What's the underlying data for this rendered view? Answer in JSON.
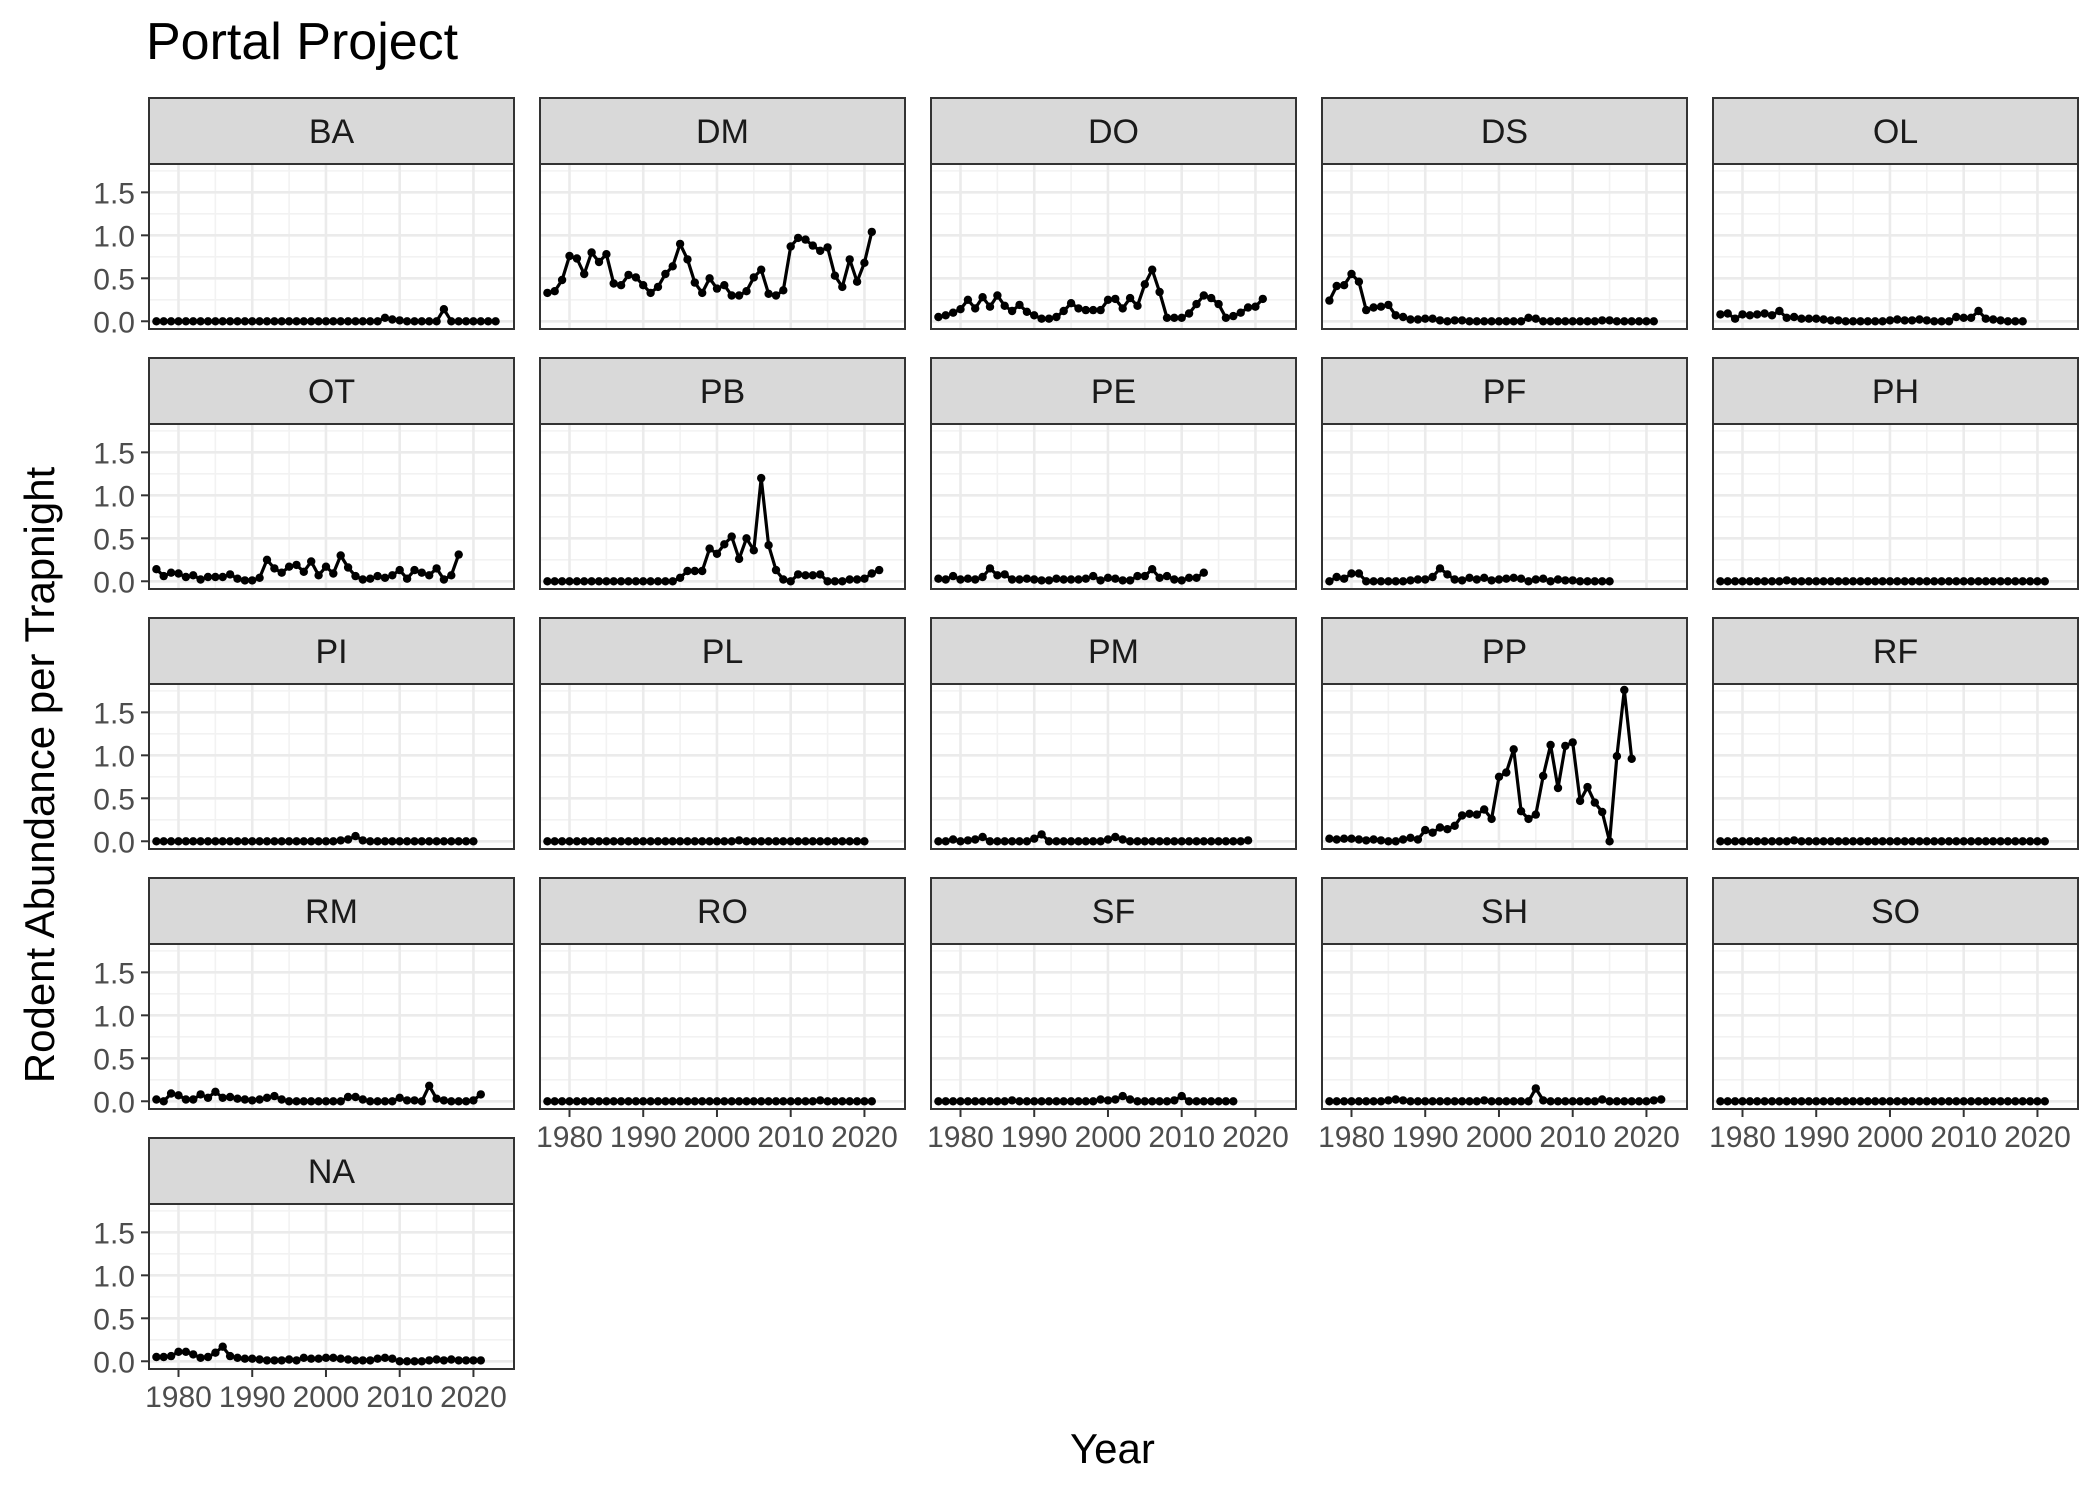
{
  "chart_data": {
    "type": "line",
    "title": "Portal Project",
    "xlabel": "Year",
    "ylabel": "Rodent Abundance per Trapnight",
    "x_ticks": [
      1980,
      1990,
      2000,
      2010,
      2020
    ],
    "y_ticks": [
      0.0,
      0.5,
      1.0,
      1.5
    ],
    "y_tick_labels": [
      "0.0",
      "0.5",
      "1.0",
      "1.5"
    ],
    "xlim": [
      1976.0,
      2025.5
    ],
    "ylim": [
      -0.09,
      1.83
    ],
    "grid": true,
    "facet_ncol": 5,
    "years": [
      1977,
      1978,
      1979,
      1980,
      1981,
      1982,
      1983,
      1984,
      1985,
      1986,
      1987,
      1988,
      1989,
      1990,
      1991,
      1992,
      1993,
      1994,
      1995,
      1996,
      1997,
      1998,
      1999,
      2000,
      2001,
      2002,
      2003,
      2004,
      2005,
      2006,
      2007,
      2008,
      2009,
      2010,
      2011,
      2012,
      2013,
      2014,
      2015,
      2016,
      2017,
      2018,
      2019,
      2020,
      2021,
      2022,
      2023
    ],
    "series": [
      {
        "name": "BA",
        "values": [
          0,
          0,
          0,
          0,
          0,
          0,
          0,
          0,
          0,
          0,
          0,
          0,
          0,
          0,
          0,
          0,
          0,
          0,
          0,
          0,
          0,
          0,
          0,
          0,
          0,
          0,
          0,
          0,
          0,
          0,
          0,
          0.04,
          0.02,
          0.01,
          0,
          0,
          0,
          0,
          0,
          0.14,
          0,
          0,
          0,
          0,
          0,
          0,
          0
        ]
      },
      {
        "name": "DM",
        "values": [
          0.33,
          0.35,
          0.48,
          0.76,
          0.73,
          0.55,
          0.8,
          0.69,
          0.78,
          0.44,
          0.42,
          0.54,
          0.51,
          0.42,
          0.33,
          0.4,
          0.55,
          0.64,
          0.9,
          0.72,
          0.45,
          0.33,
          0.5,
          0.38,
          0.42,
          0.3,
          0.3,
          0.35,
          0.51,
          0.6,
          0.32,
          0.3,
          0.36,
          0.87,
          0.97,
          0.95,
          0.88,
          0.82,
          0.86,
          0.53,
          0.4,
          0.72,
          0.46,
          0.68,
          1.04
        ]
      },
      {
        "name": "DO",
        "values": [
          0.05,
          0.07,
          0.1,
          0.14,
          0.25,
          0.15,
          0.28,
          0.17,
          0.3,
          0.18,
          0.12,
          0.19,
          0.11,
          0.07,
          0.03,
          0.03,
          0.05,
          0.12,
          0.21,
          0.15,
          0.13,
          0.13,
          0.13,
          0.25,
          0.26,
          0.15,
          0.27,
          0.18,
          0.43,
          0.6,
          0.34,
          0.04,
          0.04,
          0.04,
          0.09,
          0.2,
          0.3,
          0.27,
          0.2,
          0.04,
          0.06,
          0.1,
          0.16,
          0.17,
          0.26
        ]
      },
      {
        "name": "DS",
        "values": [
          0.24,
          0.41,
          0.42,
          0.55,
          0.46,
          0.13,
          0.16,
          0.17,
          0.19,
          0.07,
          0.05,
          0.02,
          0.02,
          0.03,
          0.03,
          0.01,
          0,
          0.01,
          0.01,
          0,
          0,
          0,
          0,
          0,
          0,
          0,
          0,
          0.04,
          0.03,
          0,
          0,
          0,
          0,
          0,
          0,
          0,
          0,
          0.01,
          0.01,
          0,
          0,
          0,
          0,
          0,
          0
        ]
      },
      {
        "name": "OL",
        "values": [
          0.08,
          0.09,
          0.03,
          0.08,
          0.07,
          0.08,
          0.09,
          0.07,
          0.12,
          0.04,
          0.05,
          0.03,
          0.03,
          0.03,
          0.02,
          0.01,
          0.01,
          0,
          0,
          0,
          0,
          0,
          0,
          0.01,
          0.02,
          0.01,
          0.01,
          0.02,
          0.01,
          0,
          0,
          0,
          0.05,
          0.04,
          0.04,
          0.12,
          0.03,
          0.02,
          0.01,
          0,
          0,
          0
        ]
      },
      {
        "name": "OT",
        "values": [
          0.14,
          0.06,
          0.1,
          0.09,
          0.05,
          0.07,
          0.02,
          0.05,
          0.05,
          0.05,
          0.08,
          0.03,
          0.01,
          0.01,
          0.04,
          0.25,
          0.15,
          0.1,
          0.17,
          0.19,
          0.11,
          0.23,
          0.07,
          0.17,
          0.09,
          0.3,
          0.16,
          0.06,
          0.02,
          0.03,
          0.06,
          0.04,
          0.07,
          0.13,
          0.03,
          0.13,
          0.1,
          0.07,
          0.15,
          0.02,
          0.07,
          0.31
        ]
      },
      {
        "name": "PB",
        "values": [
          0,
          0,
          0,
          0,
          0,
          0,
          0,
          0,
          0,
          0,
          0,
          0,
          0,
          0,
          0,
          0,
          0,
          0,
          0.04,
          0.12,
          0.12,
          0.12,
          0.38,
          0.32,
          0.43,
          0.52,
          0.26,
          0.5,
          0.36,
          1.2,
          0.42,
          0.13,
          0.02,
          0,
          0.08,
          0.07,
          0.07,
          0.08,
          0,
          0,
          0,
          0.02,
          0.02,
          0.03,
          0.09,
          0.13
        ]
      },
      {
        "name": "PE",
        "values": [
          0.03,
          0.02,
          0.06,
          0.02,
          0.03,
          0.02,
          0.05,
          0.15,
          0.07,
          0.08,
          0.02,
          0.02,
          0.03,
          0.02,
          0.01,
          0.01,
          0.03,
          0.02,
          0.02,
          0.02,
          0.03,
          0.06,
          0.01,
          0.04,
          0.03,
          0.01,
          0.01,
          0.06,
          0.06,
          0.14,
          0.04,
          0.06,
          0.02,
          0.01,
          0.04,
          0.04,
          0.1
        ]
      },
      {
        "name": "PF",
        "values": [
          0,
          0.05,
          0.03,
          0.09,
          0.09,
          0,
          0,
          0,
          0,
          0,
          0,
          0.01,
          0.02,
          0.02,
          0.05,
          0.15,
          0.08,
          0.02,
          0.01,
          0.04,
          0.02,
          0.04,
          0.01,
          0.02,
          0.03,
          0.04,
          0.03,
          0,
          0.02,
          0.03,
          0,
          0.02,
          0.01,
          0.01,
          0,
          0,
          0,
          0,
          0
        ]
      },
      {
        "name": "PH",
        "values": [
          0,
          0,
          0,
          0,
          0,
          0,
          0,
          0,
          0,
          0.01,
          0,
          0,
          0,
          0,
          0,
          0,
          0,
          0,
          0,
          0,
          0,
          0,
          0,
          0,
          0,
          0,
          0,
          0,
          0,
          0,
          0,
          0,
          0,
          0,
          0,
          0,
          0,
          0,
          0,
          0,
          0,
          0,
          0,
          0,
          0
        ]
      },
      {
        "name": "PI",
        "values": [
          0,
          0,
          0,
          0,
          0,
          0,
          0,
          0,
          0,
          0,
          0,
          0,
          0,
          0,
          0,
          0,
          0,
          0,
          0,
          0,
          0,
          0,
          0,
          0,
          0,
          0.01,
          0.02,
          0.06,
          0.01,
          0,
          0,
          0,
          0,
          0,
          0,
          0,
          0,
          0,
          0,
          0,
          0,
          0,
          0,
          0
        ]
      },
      {
        "name": "PL",
        "values": [
          0,
          0,
          0,
          0,
          0,
          0,
          0,
          0,
          0,
          0,
          0,
          0,
          0,
          0,
          0,
          0,
          0,
          0,
          0,
          0,
          0,
          0,
          0,
          0,
          0,
          0,
          0.01,
          0,
          0,
          0,
          0,
          0,
          0,
          0,
          0,
          0,
          0,
          0,
          0,
          0,
          0,
          0,
          0,
          0
        ]
      },
      {
        "name": "PM",
        "values": [
          0,
          0,
          0.02,
          0,
          0.01,
          0.02,
          0.05,
          0,
          0,
          0,
          0,
          0,
          0,
          0.03,
          0.08,
          0,
          0,
          0,
          0,
          0,
          0,
          0,
          0,
          0.02,
          0.05,
          0.02,
          0,
          0,
          0,
          0,
          0,
          0,
          0,
          0,
          0,
          0,
          0,
          0,
          0,
          0,
          0,
          0,
          0.01
        ]
      },
      {
        "name": "PP",
        "values": [
          0.03,
          0.02,
          0.03,
          0.03,
          0.02,
          0.01,
          0.02,
          0.01,
          0,
          0,
          0.02,
          0.04,
          0.02,
          0.13,
          0.1,
          0.16,
          0.14,
          0.18,
          0.3,
          0.32,
          0.31,
          0.37,
          0.26,
          0.75,
          0.8,
          1.07,
          0.35,
          0.26,
          0.31,
          0.76,
          1.12,
          0.62,
          1.11,
          1.15,
          0.47,
          0.63,
          0.45,
          0.34,
          0,
          0.99,
          1.76,
          0.96
        ]
      },
      {
        "name": "RF",
        "values": [
          0,
          0,
          0,
          0,
          0,
          0,
          0,
          0,
          0,
          0,
          0.01,
          0,
          0,
          0,
          0,
          0,
          0,
          0,
          0,
          0,
          0,
          0,
          0,
          0,
          0,
          0,
          0,
          0,
          0,
          0,
          0,
          0,
          0,
          0,
          0,
          0,
          0,
          0,
          0,
          0,
          0,
          0,
          0,
          0,
          0
        ]
      },
      {
        "name": "RM",
        "values": [
          0.02,
          0,
          0.09,
          0.07,
          0.02,
          0.02,
          0.08,
          0.04,
          0.11,
          0.04,
          0.05,
          0.03,
          0.02,
          0.01,
          0.02,
          0.04,
          0.06,
          0.02,
          0,
          0,
          0,
          0,
          0,
          0,
          0,
          0,
          0.05,
          0.05,
          0.02,
          0,
          0,
          0,
          0,
          0.04,
          0.01,
          0.01,
          0,
          0.18,
          0.03,
          0.01,
          0,
          0,
          0,
          0.01,
          0.08
        ]
      },
      {
        "name": "RO",
        "values": [
          0,
          0,
          0,
          0,
          0,
          0,
          0,
          0,
          0,
          0,
          0,
          0,
          0,
          0,
          0,
          0,
          0,
          0,
          0,
          0,
          0,
          0,
          0,
          0,
          0,
          0,
          0,
          0,
          0,
          0,
          0,
          0,
          0,
          0,
          0,
          0,
          0,
          0.01,
          0,
          0,
          0,
          0,
          0,
          0,
          0
        ]
      },
      {
        "name": "SF",
        "values": [
          0,
          0,
          0,
          0,
          0,
          0,
          0,
          0,
          0,
          0,
          0.01,
          0,
          0,
          0,
          0,
          0,
          0,
          0,
          0,
          0,
          0,
          0,
          0.02,
          0.01,
          0.02,
          0.06,
          0.02,
          0,
          0,
          0,
          0,
          0,
          0.01,
          0.06,
          0,
          0,
          0,
          0,
          0,
          0,
          0
        ]
      },
      {
        "name": "SH",
        "values": [
          0,
          0,
          0,
          0,
          0,
          0,
          0,
          0,
          0.01,
          0.02,
          0.01,
          0,
          0,
          0,
          0,
          0,
          0,
          0,
          0,
          0,
          0,
          0.01,
          0,
          0,
          0,
          0,
          0,
          0,
          0.15,
          0.01,
          0,
          0,
          0,
          0,
          0,
          0,
          0,
          0.02,
          0,
          0,
          0,
          0,
          0,
          0,
          0.01,
          0.02
        ]
      },
      {
        "name": "SO",
        "values": [
          0,
          0,
          0,
          0,
          0,
          0,
          0,
          0,
          0,
          0,
          0,
          0,
          0,
          0,
          0,
          0,
          0,
          0,
          0,
          0,
          0,
          0,
          0,
          0,
          0,
          0,
          0,
          0,
          0,
          0,
          0,
          0,
          0,
          0,
          0,
          0,
          0,
          0,
          0,
          0,
          0,
          0,
          0,
          0,
          0
        ]
      },
      {
        "name": "NA",
        "values": [
          0.05,
          0.05,
          0.06,
          0.11,
          0.11,
          0.08,
          0.04,
          0.05,
          0.1,
          0.17,
          0.06,
          0.04,
          0.03,
          0.03,
          0.02,
          0.01,
          0.01,
          0.01,
          0.02,
          0.01,
          0.04,
          0.03,
          0.03,
          0.04,
          0.04,
          0.03,
          0.02,
          0.01,
          0.01,
          0.01,
          0.03,
          0.04,
          0.03,
          0,
          0,
          0,
          0,
          0.01,
          0.02,
          0.01,
          0.02,
          0.01,
          0.01,
          0.01,
          0.01
        ]
      }
    ]
  }
}
